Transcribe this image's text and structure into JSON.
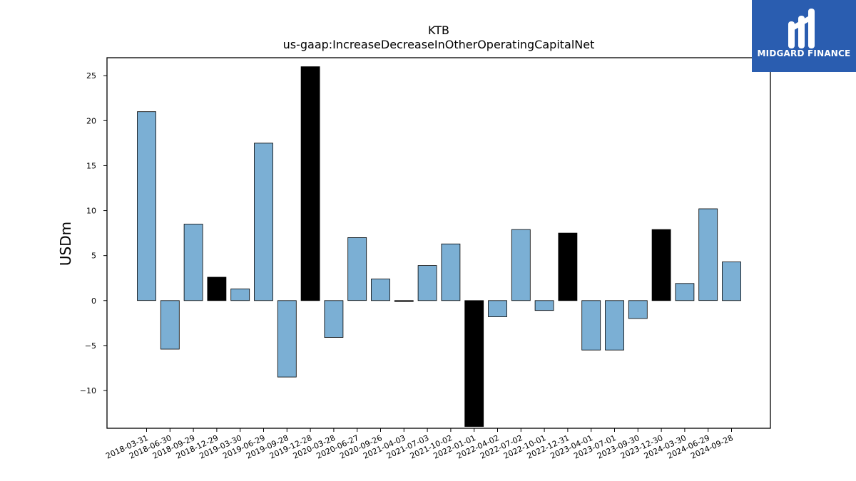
{
  "chart_data": {
    "type": "bar",
    "title": "KTB",
    "subtitle": "us-gaap:IncreaseDecreaseInOtherOperatingCapitalNet",
    "xlabel": "",
    "ylabel": "USDm",
    "ylim": [
      -14.2,
      27
    ],
    "yticks": [
      -10,
      -5,
      0,
      5,
      10,
      15,
      20,
      25
    ],
    "categories": [
      "2018-03-31",
      "2018-06-30",
      "2018-09-29",
      "2018-12-29",
      "2019-03-30",
      "2019-06-29",
      "2019-09-28",
      "2019-12-28",
      "2020-03-28",
      "2020-06-27",
      "2020-09-26",
      "2021-04-03",
      "2021-07-03",
      "2021-10-02",
      "2022-01-01",
      "2022-04-02",
      "2022-07-02",
      "2022-10-01",
      "2022-12-31",
      "2023-04-01",
      "2023-07-01",
      "2023-09-30",
      "2023-12-30",
      "2024-03-30",
      "2024-06-29",
      "2024-09-28"
    ],
    "values": [
      21.0,
      -5.4,
      8.5,
      2.6,
      1.3,
      17.5,
      -8.5,
      26.0,
      -4.1,
      7.0,
      2.4,
      -0.1,
      3.9,
      6.3,
      -14.0,
      -1.8,
      7.9,
      -1.1,
      7.5,
      -5.5,
      -5.5,
      -2.0,
      7.9,
      1.9,
      10.2,
      4.3
    ],
    "highlight": [
      false,
      false,
      false,
      true,
      false,
      false,
      false,
      true,
      false,
      false,
      false,
      true,
      false,
      false,
      true,
      false,
      false,
      false,
      true,
      false,
      false,
      false,
      true,
      false,
      false,
      false
    ],
    "colors": {
      "normal": "#7bafd4",
      "highlight": "#000000",
      "edge": "#000000"
    },
    "grid": false,
    "legend": "none"
  },
  "logo": {
    "text": "MIDGARD FINANCE",
    "icon": "midgard-logo-icon",
    "color": "#2a5db0"
  }
}
